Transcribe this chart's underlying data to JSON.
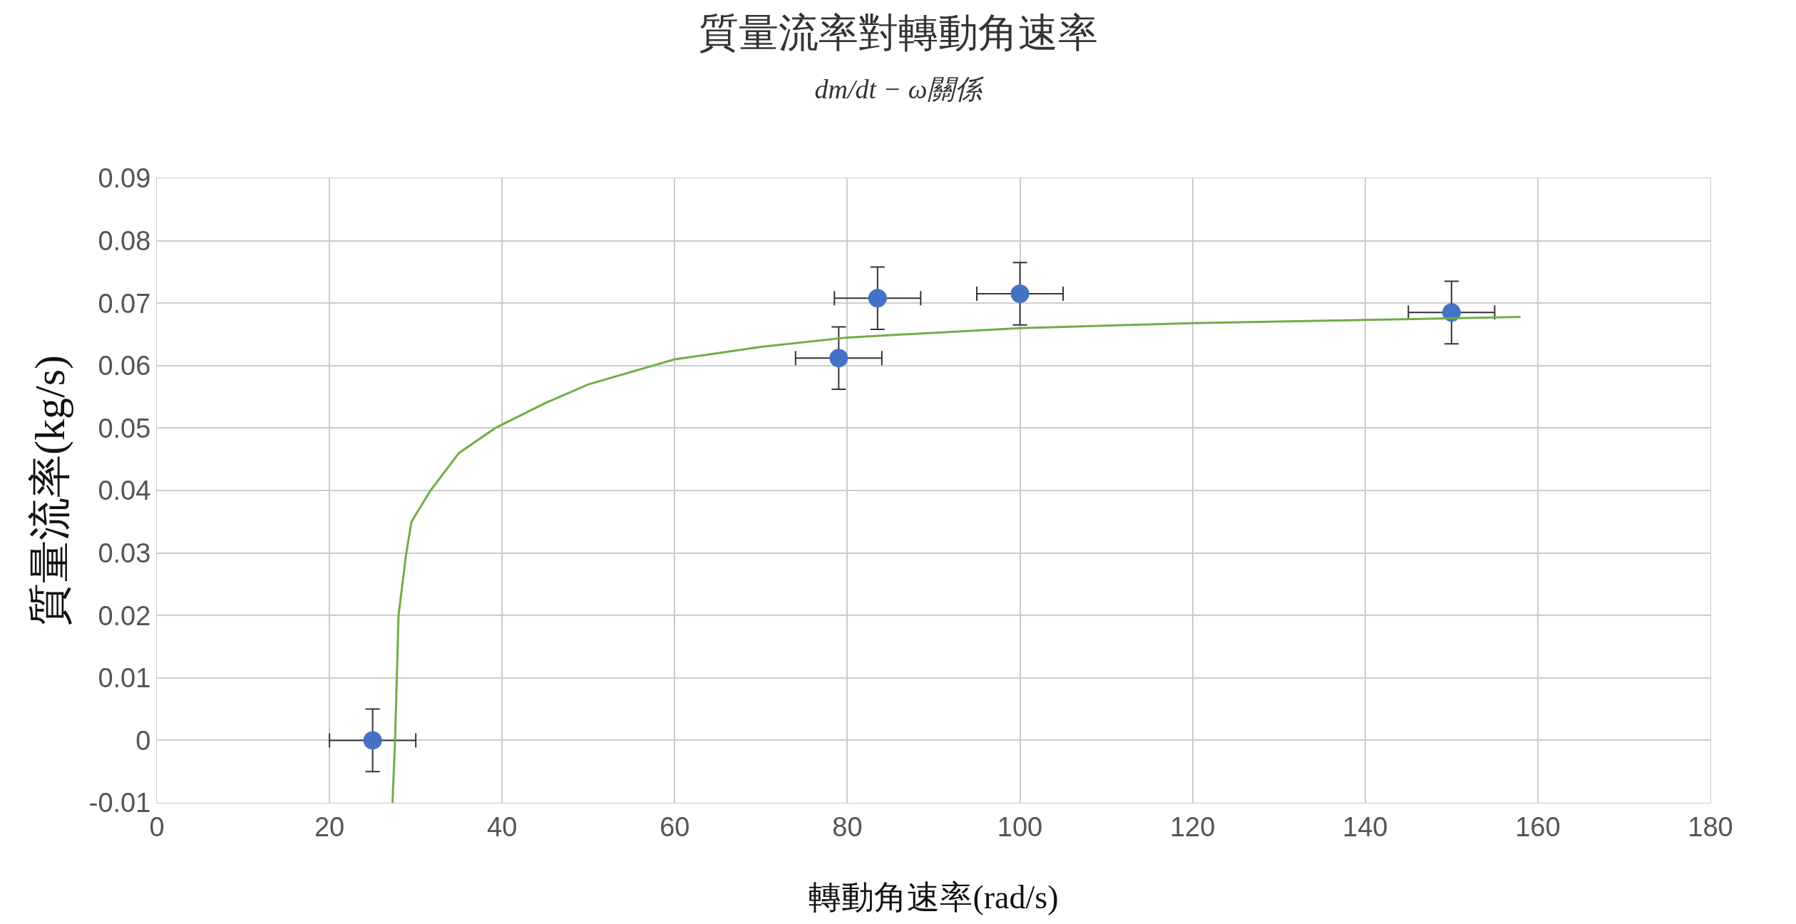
{
  "chart_data": {
    "type": "scatter",
    "title": "質量流率對轉動角速率",
    "subtitle": "dm/dt − ω關係",
    "xlabel": "轉動角速率(rad/s)",
    "ylabel": "質量流率(kg/s)",
    "xlim": [
      0,
      180
    ],
    "xticks": [
      0,
      20,
      40,
      60,
      80,
      100,
      120,
      140,
      160,
      180
    ],
    "ylim": [
      -0.01,
      0.09
    ],
    "yticks": [
      -0.01,
      0,
      0.01,
      0.02,
      0.03,
      0.04,
      0.05,
      0.06,
      0.07,
      0.08,
      0.09
    ],
    "grid": true,
    "legend": false,
    "series": [
      {
        "marker": "circle",
        "color": "#4472c4",
        "x": [
          25,
          79,
          83.5,
          100,
          150
        ],
        "values": [
          0,
          0.0612,
          0.0708,
          0.0715,
          0.0685
        ],
        "errors": [
          0.005,
          0.005,
          0.005,
          0.005,
          0.005
        ],
        "xerrors": [
          5,
          5,
          5,
          5,
          5
        ]
      },
      {
        "type": "line",
        "color": "#70ad47",
        "x": [
          27.3,
          27.6,
          28,
          28.9,
          29.5,
          31.7,
          35,
          39.2,
          45,
          50,
          60,
          70,
          80,
          100,
          120,
          140,
          158
        ],
        "values": [
          -0.01,
          0,
          0.02,
          0.03,
          0.035,
          0.04,
          0.046,
          0.05,
          0.054,
          0.057,
          0.061,
          0.063,
          0.0645,
          0.066,
          0.0668,
          0.0673,
          0.0678
        ]
      }
    ]
  }
}
